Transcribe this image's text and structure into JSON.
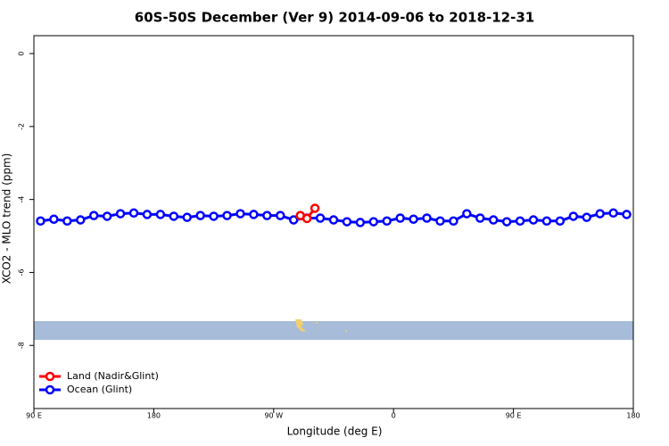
{
  "chart_data": {
    "type": "line",
    "title": "60S-50S December (Ver 9)   2014-09-06 to 2018-12-31",
    "x_label": "Longitude (deg E)",
    "y_label": "XCO2 - MLO trend (ppm)",
    "xlim": [
      90,
      540
    ],
    "ylim": [
      -9.73,
      0.49
    ],
    "xticks": [
      {
        "value": 90,
        "label": "90 E"
      },
      180,
      {
        "value": 270,
        "label": "90 W"
      },
      {
        "value": 360,
        "label": "0"
      },
      {
        "value": 450,
        "label": "90 E"
      },
      {
        "value": 540,
        "label": "180"
      }
    ],
    "yticks": [
      0,
      -2,
      -4,
      -6,
      -8
    ],
    "legend": "bottom-left",
    "series": [
      {
        "name": "Land (Nadir&Glint)",
        "color": "#ff0000",
        "x": [
          290,
          295,
          301
        ],
        "values": [
          -4.44,
          -4.52,
          -4.24
        ]
      },
      {
        "name": "Ocean (Glint)",
        "color": "#0000ff",
        "x": [
          95,
          105,
          115,
          125,
          135,
          145,
          155,
          165,
          175,
          185,
          195,
          205,
          215,
          225,
          235,
          245,
          255,
          265,
          275,
          285,
          295,
          305,
          315,
          325,
          335,
          345,
          355,
          365,
          375,
          385,
          395,
          405,
          415,
          425,
          435,
          445,
          455,
          465,
          475,
          485,
          495,
          505,
          515,
          525,
          535
        ],
        "values": [
          -4.59,
          -4.54,
          -4.59,
          -4.56,
          -4.44,
          -4.46,
          -4.39,
          -4.37,
          -4.41,
          -4.41,
          -4.46,
          -4.49,
          -4.44,
          -4.46,
          -4.44,
          -4.39,
          -4.41,
          -4.44,
          -4.44,
          -4.56,
          -4.51,
          -4.51,
          -4.56,
          -4.61,
          -4.63,
          -4.61,
          -4.59,
          -4.51,
          -4.54,
          -4.51,
          -4.59,
          -4.59,
          -4.39,
          -4.51,
          -4.56,
          -4.61,
          -4.59,
          -4.56,
          -4.59,
          -4.59,
          -4.46,
          -4.49,
          -4.39,
          -4.37,
          -4.41
        ]
      }
    ]
  }
}
